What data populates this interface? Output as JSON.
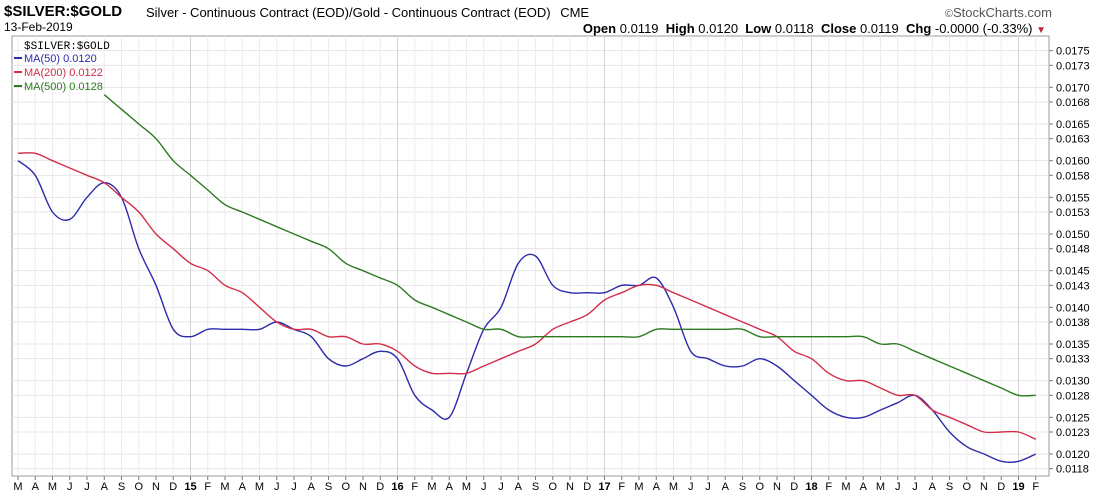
{
  "header": {
    "symbol": "$SILVER:$GOLD",
    "description": "Silver - Continuous Contract (EOD)/Gold - Continuous Contract (EOD)",
    "exchange": "CME",
    "date": "13-Feb-2019",
    "brand": "StockCharts.com",
    "brand_mark": "©",
    "open_label": "Open",
    "open": "0.0119",
    "high_label": "High",
    "high": "0.0120",
    "low_label": "Low",
    "low": "0.0118",
    "close_label": "Close",
    "close": "0.0119",
    "chg_label": "Chg",
    "chg": "-0.0000 (-0.33%)",
    "chg_icon": "down-triangle-icon"
  },
  "chart_data": {
    "type": "line",
    "ylim": [
      0.0117,
      0.0177
    ],
    "grid": true,
    "legend_placement": "top-left",
    "legend_title": "$SILVER:$GOLD",
    "y_ticks": [
      "0.0175",
      "0.0173",
      "0.0170",
      "0.0168",
      "0.0165",
      "0.0163",
      "0.0160",
      "0.0158",
      "0.0155",
      "0.0153",
      "0.0150",
      "0.0148",
      "0.0145",
      "0.0143",
      "0.0140",
      "0.0138",
      "0.0135",
      "0.0133",
      "0.0130",
      "0.0128",
      "0.0125",
      "0.0123",
      "0.0120",
      "0.0118"
    ],
    "x_ticks": [
      "M",
      "A",
      "M",
      "J",
      "J",
      "A",
      "S",
      "O",
      "N",
      "D",
      "15",
      "F",
      "M",
      "A",
      "M",
      "J",
      "J",
      "A",
      "S",
      "O",
      "N",
      "D",
      "16",
      "F",
      "M",
      "A",
      "M",
      "J",
      "J",
      "A",
      "S",
      "O",
      "N",
      "D",
      "17",
      "F",
      "M",
      "A",
      "M",
      "J",
      "J",
      "A",
      "S",
      "O",
      "N",
      "D",
      "18",
      "F",
      "M",
      "A",
      "M",
      "J",
      "J",
      "A",
      "S",
      "O",
      "N",
      "D",
      "19",
      "F"
    ],
    "x_tick_bold": [
      "15",
      "16",
      "17",
      "18",
      "19"
    ],
    "x_dates": [
      "2014-03",
      "2014-04",
      "2014-05",
      "2014-06",
      "2014-07",
      "2014-08",
      "2014-09",
      "2014-10",
      "2014-11",
      "2014-12",
      "2015-01",
      "2015-02",
      "2015-03",
      "2015-04",
      "2015-05",
      "2015-06",
      "2015-07",
      "2015-08",
      "2015-09",
      "2015-10",
      "2015-11",
      "2015-12",
      "2016-01",
      "2016-02",
      "2016-03",
      "2016-04",
      "2016-05",
      "2016-06",
      "2016-07",
      "2016-08",
      "2016-09",
      "2016-10",
      "2016-11",
      "2016-12",
      "2017-01",
      "2017-02",
      "2017-03",
      "2017-04",
      "2017-05",
      "2017-06",
      "2017-07",
      "2017-08",
      "2017-09",
      "2017-10",
      "2017-11",
      "2017-12",
      "2018-01",
      "2018-02",
      "2018-03",
      "2018-04",
      "2018-05",
      "2018-06",
      "2018-07",
      "2018-08",
      "2018-09",
      "2018-10",
      "2018-11",
      "2018-12",
      "2019-01",
      "2019-02"
    ],
    "series": [
      {
        "name": "MA(50)",
        "label": "MA(50) 0.0120",
        "color": "#2b2bab",
        "values": [
          0.016,
          0.0158,
          0.0153,
          0.0152,
          0.0155,
          0.0157,
          0.0155,
          0.0148,
          0.0143,
          0.0137,
          0.0136,
          0.0137,
          0.0137,
          0.0137,
          0.0137,
          0.0138,
          0.0137,
          0.0136,
          0.0133,
          0.0132,
          0.0133,
          0.0134,
          0.0133,
          0.0128,
          0.0126,
          0.0125,
          0.0131,
          0.0137,
          0.014,
          0.0146,
          0.0147,
          0.0143,
          0.0142,
          0.0142,
          0.0142,
          0.0143,
          0.0143,
          0.0144,
          0.014,
          0.0134,
          0.0133,
          0.0132,
          0.0132,
          0.0133,
          0.0132,
          0.013,
          0.0128,
          0.0126,
          0.0125,
          0.0125,
          0.0126,
          0.0127,
          0.0128,
          0.0126,
          0.0123,
          0.0121,
          0.012,
          0.0119,
          0.0119,
          0.012
        ]
      },
      {
        "name": "MA(200)",
        "label": "MA(200) 0.0122",
        "color": "#d22d4a",
        "values": [
          0.0161,
          0.0161,
          0.016,
          0.0159,
          0.0158,
          0.0157,
          0.0155,
          0.0153,
          0.015,
          0.0148,
          0.0146,
          0.0145,
          0.0143,
          0.0142,
          0.014,
          0.0138,
          0.0137,
          0.0137,
          0.0136,
          0.0136,
          0.0135,
          0.0135,
          0.0134,
          0.0132,
          0.0131,
          0.0131,
          0.0131,
          0.0132,
          0.0133,
          0.0134,
          0.0135,
          0.0137,
          0.0138,
          0.0139,
          0.0141,
          0.0142,
          0.0143,
          0.0143,
          0.0142,
          0.0141,
          0.014,
          0.0139,
          0.0138,
          0.0137,
          0.0136,
          0.0134,
          0.0133,
          0.0131,
          0.013,
          0.013,
          0.0129,
          0.0128,
          0.0128,
          0.0126,
          0.0125,
          0.0124,
          0.0123,
          0.0123,
          0.0123,
          0.0122
        ]
      },
      {
        "name": "MA(500)",
        "label": "MA(500) 0.0128",
        "color": "#2a7a1e",
        "values": [
          null,
          null,
          null,
          null,
          null,
          0.0169,
          0.0167,
          0.0165,
          0.0163,
          0.016,
          0.0158,
          0.0156,
          0.0154,
          0.0153,
          0.0152,
          0.0151,
          0.015,
          0.0149,
          0.0148,
          0.0146,
          0.0145,
          0.0144,
          0.0143,
          0.0141,
          0.014,
          0.0139,
          0.0138,
          0.0137,
          0.0137,
          0.0136,
          0.0136,
          0.0136,
          0.0136,
          0.0136,
          0.0136,
          0.0136,
          0.0136,
          0.0137,
          0.0137,
          0.0137,
          0.0137,
          0.0137,
          0.0137,
          0.0136,
          0.0136,
          0.0136,
          0.0136,
          0.0136,
          0.0136,
          0.0136,
          0.0135,
          0.0135,
          0.0134,
          0.0133,
          0.0132,
          0.0131,
          0.013,
          0.0129,
          0.0128,
          0.0128
        ]
      }
    ]
  }
}
